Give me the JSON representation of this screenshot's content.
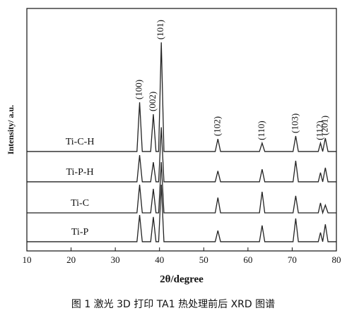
{
  "chart_data": {
    "type": "line",
    "x_label": "2θ/degree",
    "y_label": "Intensity/ a.u.",
    "caption": "图 1  激光 3D 打印 TA1 热处理前后 XRD 图谱",
    "x": [
      10,
      34.9,
      35.5,
      36.1,
      38.0,
      38.6,
      39.2,
      39.8,
      40.4,
      41.0,
      52.6,
      53.2,
      53.8,
      62.6,
      63.2,
      63.8,
      70.2,
      70.8,
      71.4,
      75.9,
      76.4,
      76.9,
      77.5,
      78.1,
      80
    ],
    "series": [
      {
        "name": "Ti-C-H",
        "color": "#222222",
        "values": [
          41,
          41,
          61.3,
          41,
          41,
          56.4,
          41,
          41,
          86,
          41,
          41,
          46.2,
          41,
          41,
          44.5,
          41,
          41,
          47.4,
          41,
          41,
          44.5,
          41,
          46.5,
          41,
          41
        ]
      },
      {
        "name": "Ti-P-H",
        "color": "#222222",
        "values": [
          28.5,
          28.5,
          39.5,
          28.5,
          28.5,
          36.6,
          28.5,
          28.5,
          51,
          28.5,
          28.5,
          33,
          28.5,
          28.5,
          33.7,
          28.5,
          28.5,
          37.2,
          28.5,
          28.5,
          32.3,
          28.5,
          34.3,
          28.5,
          28.5
        ]
      },
      {
        "name": "Ti-C",
        "color": "#222222",
        "values": [
          15.7,
          15.7,
          27.3,
          15.7,
          15.7,
          25.6,
          15.7,
          15.7,
          36.6,
          15.7,
          15.7,
          22,
          15.7,
          15.7,
          24.4,
          15.7,
          15.7,
          22.7,
          15.7,
          15.7,
          19.8,
          15.7,
          18.9,
          15.7,
          15.7
        ]
      },
      {
        "name": "Ti-P",
        "color": "#222222",
        "values": [
          3.8,
          3.8,
          14.8,
          3.8,
          3.8,
          14,
          3.8,
          3.8,
          27.3,
          3.8,
          3.8,
          8.4,
          3.8,
          3.8,
          10.5,
          3.8,
          3.8,
          13.4,
          3.8,
          3.8,
          7.6,
          3.8,
          11,
          3.8,
          3.8
        ]
      }
    ],
    "peak_labels": [
      {
        "label": "(100)",
        "x": 35.5
      },
      {
        "label": "(002)",
        "x": 38.6
      },
      {
        "label": "(101)",
        "x": 40.4
      },
      {
        "label": "(102)",
        "x": 53.2
      },
      {
        "label": "(110)",
        "x": 63.2
      },
      {
        "label": "(103)",
        "x": 70.8
      },
      {
        "label": "(112)",
        "x": 76.4
      },
      {
        "label": "(201)",
        "x": 77.5
      }
    ],
    "xlim": [
      10,
      80
    ],
    "xticks": [
      10,
      20,
      30,
      40,
      50,
      60,
      70,
      80
    ],
    "ylim": [
      0,
      100
    ]
  }
}
